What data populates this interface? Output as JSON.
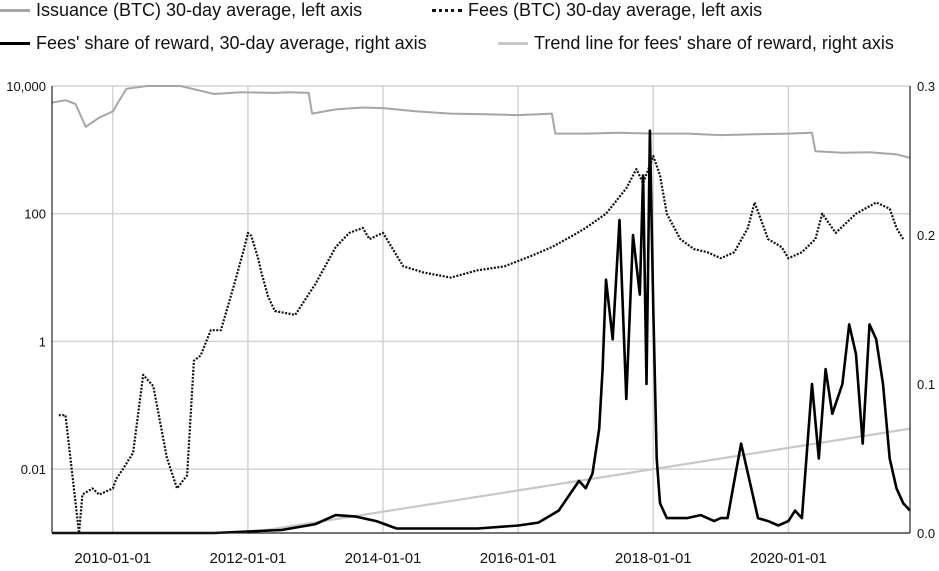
{
  "chart_data": {
    "type": "line",
    "title": "",
    "legend_position": "top",
    "grid": true,
    "left_axis": {
      "scale": "log",
      "ylim": [
        0.001,
        10000
      ],
      "tick_values": [
        0.01,
        1,
        100,
        10000
      ],
      "tick_labels": [
        "0.01",
        "1",
        "100",
        "10,000"
      ]
    },
    "right_axis": {
      "ylim": [
        0,
        0.3
      ],
      "tick_values": [
        0,
        0.1,
        0.2,
        0.3
      ],
      "tick_labels": [
        "0.0",
        "0.1",
        "0.2",
        "0.3"
      ]
    },
    "x_axis": {
      "range": [
        2009.1,
        2021.8
      ],
      "tick_values": [
        2010,
        2012,
        2014,
        2016,
        2018,
        2020
      ],
      "tick_labels": [
        "2010-01-01",
        "2012-01-01",
        "2014-01-01",
        "2016-01-01",
        "2018-01-01",
        "2020-01-01"
      ]
    },
    "series": [
      {
        "name": "Issuance (BTC) 30-day average, left axis",
        "axis": "left",
        "color": "#a6a6a6",
        "style": "solid",
        "x": [
          2009.1,
          2009.3,
          2009.45,
          2009.55,
          2009.6,
          2009.8,
          2010.0,
          2010.2,
          2010.5,
          2010.8,
          2011.0,
          2011.5,
          2011.9,
          2012.4,
          2012.6,
          2012.9,
          2012.95,
          2013.3,
          2013.7,
          2014.0,
          2014.5,
          2015.0,
          2015.5,
          2016.0,
          2016.5,
          2016.55,
          2017.0,
          2017.5,
          2018.0,
          2018.5,
          2019.0,
          2019.5,
          2020.0,
          2020.35,
          2020.4,
          2020.8,
          2021.2,
          2021.6,
          2021.8
        ],
        "y": [
          5500,
          6000,
          5200,
          3000,
          2300,
          3200,
          4000,
          9000,
          12000,
          10500,
          10000,
          7500,
          8000,
          7800,
          8000,
          7800,
          3700,
          4300,
          4600,
          4500,
          4000,
          3700,
          3600,
          3500,
          3700,
          1800,
          1800,
          1850,
          1800,
          1800,
          1700,
          1750,
          1800,
          1850,
          950,
          900,
          920,
          850,
          750
        ]
      },
      {
        "name": "Fees (BTC) 30-day average, left axis",
        "axis": "left",
        "color": "#111111",
        "style": "dotted",
        "x": [
          2009.2,
          2009.3,
          2009.5,
          2009.55,
          2009.7,
          2009.8,
          2010.0,
          2010.05,
          2010.15,
          2010.3,
          2010.45,
          2010.6,
          2010.8,
          2010.95,
          2011.1,
          2011.2,
          2011.3,
          2011.45,
          2011.6,
          2011.8,
          2011.95,
          2012.0,
          2012.05,
          2012.15,
          2012.2,
          2012.3,
          2012.4,
          2012.7,
          2013.0,
          2013.3,
          2013.5,
          2013.7,
          2013.8,
          2013.9,
          2014.0,
          2014.3,
          2014.6,
          2015.0,
          2015.4,
          2015.8,
          2016.2,
          2016.5,
          2016.8,
          2017.0,
          2017.3,
          2017.6,
          2017.75,
          2017.85,
          2018.0,
          2018.1,
          2018.2,
          2018.4,
          2018.6,
          2018.8,
          2019.0,
          2019.2,
          2019.4,
          2019.5,
          2019.7,
          2019.9,
          2020.0,
          2020.2,
          2020.4,
          2020.5,
          2020.7,
          2021.0,
          2021.3,
          2021.5,
          2021.6,
          2021.7
        ],
        "y": [
          0.07,
          0.07,
          0.0007,
          0.004,
          0.005,
          0.004,
          0.005,
          0.007,
          0.01,
          0.018,
          0.3,
          0.2,
          0.015,
          0.005,
          0.008,
          0.5,
          0.6,
          1.5,
          1.5,
          8,
          30,
          50,
          45,
          20,
          12,
          5,
          3,
          2.6,
          8,
          30,
          50,
          60,
          40,
          45,
          50,
          15,
          12,
          10,
          13,
          15,
          22,
          30,
          45,
          60,
          100,
          250,
          500,
          300,
          800,
          400,
          100,
          40,
          28,
          25,
          20,
          25,
          60,
          150,
          40,
          30,
          20,
          25,
          40,
          100,
          50,
          100,
          150,
          120,
          60,
          40
        ]
      },
      {
        "name": "Fees' share of reward, 30-day average, right axis",
        "axis": "right",
        "color": "#000000",
        "style": "solid",
        "x": [
          2009.1,
          2011.5,
          2012.0,
          2012.5,
          2013.0,
          2013.3,
          2013.6,
          2013.9,
          2014.2,
          2014.8,
          2015.4,
          2016.0,
          2016.3,
          2016.6,
          2016.9,
          2017.0,
          2017.1,
          2017.2,
          2017.25,
          2017.3,
          2017.4,
          2017.5,
          2017.6,
          2017.7,
          2017.8,
          2017.85,
          2017.9,
          2017.95,
          2018.0,
          2018.05,
          2018.1,
          2018.2,
          2018.3,
          2018.5,
          2018.7,
          2018.9,
          2019.0,
          2019.1,
          2019.2,
          2019.3,
          2019.4,
          2019.55,
          2019.7,
          2019.85,
          2020.0,
          2020.1,
          2020.2,
          2020.35,
          2020.45,
          2020.55,
          2020.65,
          2020.8,
          2020.9,
          2021.0,
          2021.1,
          2021.2,
          2021.3,
          2021.4,
          2021.5,
          2021.6,
          2021.7,
          2021.8
        ],
        "y": [
          0.0,
          0.0,
          0.001,
          0.002,
          0.006,
          0.012,
          0.011,
          0.008,
          0.003,
          0.003,
          0.003,
          0.005,
          0.007,
          0.015,
          0.035,
          0.03,
          0.04,
          0.07,
          0.11,
          0.17,
          0.13,
          0.21,
          0.09,
          0.2,
          0.16,
          0.24,
          0.1,
          0.27,
          0.15,
          0.05,
          0.02,
          0.01,
          0.01,
          0.01,
          0.012,
          0.008,
          0.01,
          0.01,
          0.035,
          0.06,
          0.04,
          0.01,
          0.008,
          0.005,
          0.008,
          0.015,
          0.01,
          0.1,
          0.05,
          0.11,
          0.08,
          0.1,
          0.14,
          0.12,
          0.06,
          0.14,
          0.13,
          0.1,
          0.05,
          0.03,
          0.02,
          0.015
        ]
      },
      {
        "name": "Trend line for fees' share of reward, right axis",
        "axis": "right",
        "color": "#c8c8c8",
        "style": "solid",
        "x": [
          2012.0,
          2021.8
        ],
        "y": [
          0.0,
          0.07
        ]
      }
    ]
  }
}
